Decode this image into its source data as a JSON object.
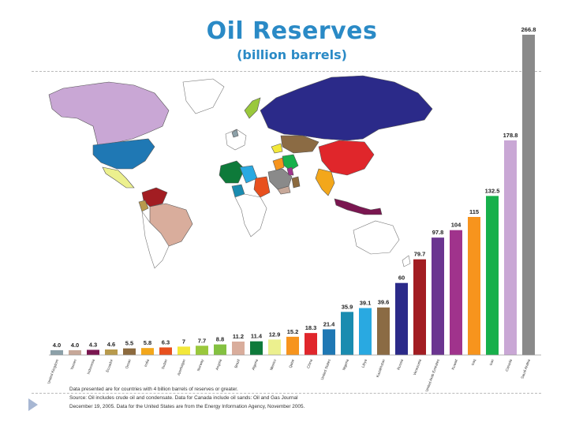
{
  "title": "Oil Reserves",
  "subtitle": "(billion barrels)",
  "chart_data": {
    "type": "bar",
    "title": "Oil Reserves",
    "subtitle": "(billion barrels)",
    "ylabel": "",
    "xlabel": "",
    "ylim": [
      0,
      266.8
    ],
    "grid": false,
    "categories": [
      "United Kingdom",
      "Yemen",
      "Indonesia",
      "Ecuador",
      "Oman",
      "India",
      "Sudan",
      "Azerbaijan",
      "Norway",
      "Angola",
      "Brazil",
      "Algeria",
      "Mexico",
      "Qatar",
      "China",
      "United States",
      "Nigeria",
      "Libya",
      "Kazakhstan",
      "Russia",
      "Venezuela",
      "United Arab Emirates",
      "Kuwait",
      "Iraq",
      "Iran",
      "Canada",
      "Saudi Arabia"
    ],
    "values": [
      4.0,
      4.0,
      4.3,
      4.6,
      5.5,
      5.8,
      6.3,
      7,
      7.7,
      8.8,
      11.2,
      11.4,
      12.9,
      15.2,
      18.3,
      21.4,
      35.9,
      39.1,
      39.6,
      60,
      79.7,
      97.8,
      104,
      115,
      132.5,
      178.8,
      266.8
    ],
    "value_labels": [
      "4.0",
      "4.0",
      "4.3",
      "4.6",
      "5.5",
      "5.8",
      "6.3",
      "7",
      "7.7",
      "8.8",
      "11.2",
      "11.4",
      "12.9",
      "15.2",
      "18.3",
      "21.4",
      "35.9",
      "39.1",
      "39.6",
      "60",
      "79.7",
      "97.8",
      "104",
      "115",
      "132.5",
      "178.8",
      "266.8"
    ],
    "colors": [
      "#8ca0a8",
      "#c7a899",
      "#7a1650",
      "#b89a4c",
      "#8c6a3e",
      "#f3a71b",
      "#e8501e",
      "#f3e83a",
      "#9ac83c",
      "#84c141",
      "#d9ad9c",
      "#0e7a3a",
      "#ecf08e",
      "#f7941d",
      "#e0262b",
      "#1f78b4",
      "#1a8cb0",
      "#29a9e1",
      "#8b6b44",
      "#2b2a89",
      "#a21d22",
      "#6b3590",
      "#a0338c",
      "#f7941d",
      "#17b04b",
      "#c9a7d5",
      "#8a8a8a"
    ]
  },
  "map": {
    "description_icon": "world-map"
  },
  "note": {
    "line1": "Data presented are for countries with 4 billion barrels of reserves or greater.",
    "line2": "Source: Oil includes crude oil and condensate. Data for Canada include oil sands: Oil and Gas Journal",
    "line3": "December 19, 2005. Data for the United States are from the Energy Information Agency, November 2005."
  }
}
